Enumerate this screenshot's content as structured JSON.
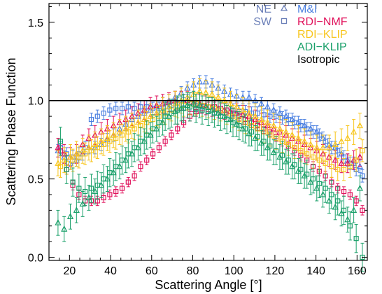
{
  "chart_data": {
    "type": "scatter",
    "xlabel": "Scattering Angle [°]",
    "ylabel": "Scattering Phase Function",
    "xlim": [
      10,
      165
    ],
    "ylim": [
      -0.02,
      1.62
    ],
    "xticks": [
      20,
      40,
      60,
      80,
      100,
      120,
      140,
      160
    ],
    "yticks": [
      0.0,
      0.5,
      1.0,
      1.5
    ],
    "ytick_labels": [
      "0.0",
      "0.5",
      "1.0",
      "1.5"
    ],
    "reference_line": {
      "y": 1.0,
      "name": "Isotropic",
      "color": "#000000"
    },
    "legend": {
      "placement": "top-right",
      "markers": [
        {
          "label": "NE",
          "symbol": "triangle",
          "color": "#6b7fb8"
        },
        {
          "label": "SW",
          "symbol": "square",
          "color": "#6b7fb8"
        }
      ],
      "series": [
        {
          "label": "M&I",
          "color": "#4a7fe0"
        },
        {
          "label": "RDI−NMF",
          "color": "#e0105a"
        },
        {
          "label": "RDI−KLIP",
          "color": "#f7c51b"
        },
        {
          "label": "ADI−KLIP",
          "color": "#1aa06a"
        },
        {
          "label": "Isotropic",
          "color": "#000000"
        }
      ]
    },
    "x": [
      15,
      18,
      21,
      24,
      27,
      30,
      33,
      36,
      39,
      42,
      45,
      48,
      51,
      54,
      57,
      60,
      63,
      66,
      69,
      72,
      75,
      78,
      81,
      84,
      87,
      90,
      93,
      96,
      99,
      102,
      105,
      108,
      111,
      114,
      117,
      120,
      123,
      126,
      129,
      132,
      135,
      138,
      141,
      144,
      147,
      150,
      153,
      156,
      159,
      162
    ],
    "series": [
      {
        "name": "M&I",
        "side": "NE",
        "marker": "triangle",
        "color": "#4a7fe0",
        "values": [
          0.68,
          0.64,
          0.6,
          0.62,
          0.66,
          0.7,
          0.7,
          0.72,
          0.75,
          0.78,
          0.82,
          0.85,
          0.88,
          0.9,
          0.92,
          0.94,
          0.96,
          0.98,
          1.0,
          1.02,
          1.05,
          1.08,
          1.1,
          1.12,
          1.12,
          1.1,
          1.08,
          1.06,
          1.04,
          1.03,
          1.02,
          1.02,
          1.0,
          0.98,
          0.96,
          0.94,
          0.92,
          0.9,
          0.88,
          0.86,
          0.84,
          0.82,
          0.8,
          0.76,
          0.72,
          0.7,
          0.66,
          0.62,
          0.6,
          0.58
        ],
        "errors": [
          0.04,
          0.04,
          0.04,
          0.04,
          0.04,
          0.04,
          0.04,
          0.04,
          0.04,
          0.04,
          0.04,
          0.04,
          0.04,
          0.04,
          0.04,
          0.04,
          0.04,
          0.04,
          0.04,
          0.04,
          0.04,
          0.04,
          0.04,
          0.04,
          0.04,
          0.04,
          0.04,
          0.04,
          0.04,
          0.04,
          0.04,
          0.04,
          0.04,
          0.04,
          0.04,
          0.04,
          0.04,
          0.04,
          0.04,
          0.04,
          0.04,
          0.04,
          0.04,
          0.04,
          0.04,
          0.04,
          0.04,
          0.04,
          0.04,
          0.04
        ]
      },
      {
        "name": "M&I",
        "side": "SW",
        "marker": "square",
        "color": "#4a7fe0",
        "values": [
          0.7,
          0.66,
          0.64,
          0.66,
          0.7,
          0.88,
          0.9,
          0.92,
          0.94,
          0.95,
          0.95,
          0.96,
          0.95,
          0.96,
          0.96,
          0.95,
          0.95,
          0.96,
          0.97,
          0.98,
          0.98,
          0.98,
          0.97,
          0.96,
          0.96,
          0.95,
          0.95,
          0.94,
          0.94,
          0.93,
          0.93,
          0.92,
          0.92,
          0.91,
          0.9,
          0.9,
          0.89,
          0.88,
          0.86,
          0.84,
          0.82,
          0.8,
          0.78,
          0.74,
          0.7,
          0.68,
          0.64,
          0.6,
          0.56,
          0.52
        ],
        "errors": [
          0.04,
          0.04,
          0.04,
          0.04,
          0.04,
          0.04,
          0.04,
          0.04,
          0.04,
          0.04,
          0.04,
          0.04,
          0.04,
          0.04,
          0.04,
          0.04,
          0.04,
          0.04,
          0.04,
          0.04,
          0.04,
          0.04,
          0.04,
          0.04,
          0.04,
          0.04,
          0.04,
          0.04,
          0.04,
          0.04,
          0.04,
          0.04,
          0.04,
          0.04,
          0.04,
          0.04,
          0.04,
          0.04,
          0.04,
          0.04,
          0.04,
          0.04,
          0.04,
          0.04,
          0.04,
          0.04,
          0.04,
          0.04,
          0.04,
          0.04
        ]
      },
      {
        "name": "RDI−NMF",
        "side": "NE",
        "marker": "triangle",
        "color": "#e0105a",
        "values": [
          0.7,
          0.66,
          0.64,
          0.66,
          0.72,
          0.76,
          0.78,
          0.8,
          0.82,
          0.84,
          0.86,
          0.88,
          0.9,
          0.92,
          0.94,
          0.96,
          0.97,
          0.98,
          0.99,
          1.0,
          1.0,
          1.0,
          0.99,
          0.98,
          0.97,
          0.96,
          0.95,
          0.94,
          0.93,
          0.92,
          0.91,
          0.9,
          0.88,
          0.86,
          0.84,
          0.82,
          0.8,
          0.78,
          0.76,
          0.74,
          0.72,
          0.7,
          0.68,
          0.66,
          0.64,
          0.62,
          0.6,
          0.6,
          0.62,
          0.64
        ],
        "errors": [
          0.06,
          0.06,
          0.06,
          0.06,
          0.06,
          0.06,
          0.06,
          0.06,
          0.06,
          0.06,
          0.06,
          0.06,
          0.06,
          0.06,
          0.06,
          0.06,
          0.06,
          0.06,
          0.06,
          0.06,
          0.06,
          0.06,
          0.06,
          0.06,
          0.06,
          0.06,
          0.06,
          0.06,
          0.06,
          0.06,
          0.06,
          0.06,
          0.06,
          0.06,
          0.06,
          0.06,
          0.06,
          0.06,
          0.06,
          0.06,
          0.06,
          0.06,
          0.06,
          0.06,
          0.06,
          0.06,
          0.06,
          0.06,
          0.06,
          0.06
        ]
      },
      {
        "name": "RDI−NMF",
        "side": "SW",
        "marker": "square",
        "color": "#e0105a",
        "values": [
          0.68,
          0.56,
          0.46,
          0.4,
          0.36,
          0.36,
          0.36,
          0.38,
          0.4,
          0.42,
          0.44,
          0.48,
          0.52,
          0.58,
          0.62,
          0.66,
          0.7,
          0.74,
          0.78,
          0.82,
          0.86,
          0.9,
          0.93,
          0.95,
          0.96,
          0.96,
          0.95,
          0.94,
          0.92,
          0.9,
          0.88,
          0.86,
          0.84,
          0.82,
          0.8,
          0.77,
          0.74,
          0.71,
          0.68,
          0.65,
          0.62,
          0.58,
          0.55,
          0.52,
          0.48,
          0.44,
          0.42,
          0.4,
          0.36,
          0.3
        ],
        "errors": [
          0.03,
          0.03,
          0.03,
          0.03,
          0.03,
          0.03,
          0.03,
          0.03,
          0.03,
          0.03,
          0.03,
          0.03,
          0.03,
          0.03,
          0.03,
          0.03,
          0.03,
          0.03,
          0.03,
          0.03,
          0.03,
          0.03,
          0.03,
          0.03,
          0.03,
          0.03,
          0.03,
          0.03,
          0.03,
          0.03,
          0.03,
          0.03,
          0.03,
          0.03,
          0.03,
          0.03,
          0.03,
          0.03,
          0.03,
          0.03,
          0.03,
          0.03,
          0.03,
          0.03,
          0.03,
          0.03,
          0.03,
          0.03,
          0.03,
          0.03
        ]
      },
      {
        "name": "RDI−KLIP",
        "side": "NE",
        "marker": "triangle",
        "color": "#f7c51b",
        "values": [
          0.6,
          0.62,
          0.64,
          0.66,
          0.68,
          0.7,
          0.72,
          0.74,
          0.76,
          0.78,
          0.8,
          0.82,
          0.84,
          0.86,
          0.88,
          0.9,
          0.92,
          0.94,
          0.96,
          0.98,
          1.0,
          1.02,
          1.04,
          1.06,
          1.05,
          1.04,
          1.02,
          1.0,
          0.98,
          0.96,
          0.94,
          0.92,
          0.9,
          0.88,
          0.86,
          0.84,
          0.82,
          0.8,
          0.78,
          0.76,
          0.74,
          0.72,
          0.7,
          0.7,
          0.7,
          0.72,
          0.74,
          0.76,
          0.8,
          0.84
        ],
        "errors": [
          0.08,
          0.08,
          0.08,
          0.08,
          0.08,
          0.08,
          0.08,
          0.08,
          0.08,
          0.08,
          0.08,
          0.08,
          0.08,
          0.08,
          0.08,
          0.08,
          0.08,
          0.08,
          0.08,
          0.08,
          0.08,
          0.08,
          0.08,
          0.08,
          0.08,
          0.08,
          0.08,
          0.08,
          0.08,
          0.08,
          0.08,
          0.08,
          0.08,
          0.08,
          0.08,
          0.08,
          0.08,
          0.08,
          0.08,
          0.08,
          0.08,
          0.08,
          0.08,
          0.08,
          0.08,
          0.08,
          0.08,
          0.08,
          0.08,
          0.08
        ]
      },
      {
        "name": "RDI−KLIP",
        "side": "SW",
        "marker": "square",
        "color": "#f7c51b",
        "values": [
          0.58,
          0.6,
          0.62,
          0.64,
          0.66,
          0.68,
          0.7,
          0.72,
          0.74,
          0.76,
          0.78,
          0.8,
          0.82,
          0.84,
          0.86,
          0.88,
          0.9,
          0.92,
          0.94,
          0.96,
          0.97,
          0.98,
          0.98,
          0.97,
          0.96,
          0.95,
          0.94,
          0.92,
          0.9,
          0.88,
          0.86,
          0.84,
          0.82,
          0.8,
          0.78,
          0.76,
          0.74,
          0.72,
          0.7,
          0.68,
          0.66,
          0.64,
          0.62,
          0.6,
          0.58,
          0.56,
          0.56,
          0.58,
          0.62,
          0.68
        ],
        "errors": [
          0.07,
          0.07,
          0.07,
          0.07,
          0.07,
          0.07,
          0.07,
          0.07,
          0.07,
          0.07,
          0.07,
          0.07,
          0.07,
          0.07,
          0.07,
          0.07,
          0.07,
          0.07,
          0.07,
          0.07,
          0.07,
          0.07,
          0.07,
          0.07,
          0.07,
          0.07,
          0.07,
          0.07,
          0.07,
          0.07,
          0.07,
          0.07,
          0.07,
          0.07,
          0.07,
          0.07,
          0.07,
          0.07,
          0.07,
          0.07,
          0.07,
          0.07,
          0.07,
          0.07,
          0.07,
          0.07,
          0.07,
          0.07,
          0.07,
          0.07
        ]
      },
      {
        "name": "ADI−KLIP",
        "side": "NE",
        "marker": "triangle",
        "color": "#1aa06a",
        "values": [
          0.22,
          0.18,
          0.26,
          0.3,
          0.34,
          0.38,
          0.42,
          0.46,
          0.5,
          0.54,
          0.58,
          0.62,
          0.66,
          0.7,
          0.74,
          0.78,
          0.82,
          0.86,
          0.9,
          0.93,
          0.95,
          0.97,
          0.98,
          0.97,
          0.96,
          0.94,
          0.92,
          0.9,
          0.88,
          0.85,
          0.82,
          0.79,
          0.76,
          0.73,
          0.7,
          0.67,
          0.64,
          0.61,
          0.58,
          0.55,
          0.52,
          0.48,
          0.44,
          0.4,
          0.36,
          0.32,
          0.28,
          0.24,
          0.3,
          0.44
        ],
        "errors": [
          0.08,
          0.08,
          0.08,
          0.08,
          0.08,
          0.08,
          0.08,
          0.08,
          0.08,
          0.08,
          0.08,
          0.08,
          0.08,
          0.08,
          0.08,
          0.08,
          0.08,
          0.08,
          0.08,
          0.08,
          0.08,
          0.08,
          0.08,
          0.08,
          0.08,
          0.08,
          0.08,
          0.08,
          0.08,
          0.08,
          0.08,
          0.08,
          0.08,
          0.08,
          0.08,
          0.08,
          0.08,
          0.08,
          0.08,
          0.08,
          0.08,
          0.08,
          0.08,
          0.08,
          0.08,
          0.08,
          0.08,
          0.08,
          0.08,
          0.08
        ]
      },
      {
        "name": "ADI−KLIP",
        "side": "SW",
        "marker": "square",
        "color": "#1aa06a",
        "values": [
          0.74,
          0.56,
          0.48,
          0.44,
          0.42,
          0.44,
          0.46,
          0.5,
          0.54,
          0.58,
          0.62,
          0.66,
          0.7,
          0.74,
          0.78,
          0.82,
          0.86,
          0.9,
          0.92,
          0.94,
          0.95,
          0.96,
          0.95,
          0.94,
          0.93,
          0.92,
          0.9,
          0.88,
          0.86,
          0.84,
          0.82,
          0.8,
          0.77,
          0.74,
          0.71,
          0.68,
          0.65,
          0.62,
          0.59,
          0.56,
          0.53,
          0.5,
          0.47,
          0.44,
          0.4,
          0.36,
          0.3,
          0.2,
          0.12,
          0.0
        ],
        "errors": [
          0.09,
          0.09,
          0.09,
          0.09,
          0.09,
          0.09,
          0.09,
          0.09,
          0.09,
          0.09,
          0.09,
          0.09,
          0.09,
          0.09,
          0.09,
          0.09,
          0.09,
          0.09,
          0.09,
          0.09,
          0.09,
          0.09,
          0.09,
          0.09,
          0.09,
          0.09,
          0.09,
          0.09,
          0.09,
          0.09,
          0.09,
          0.09,
          0.09,
          0.09,
          0.09,
          0.09,
          0.09,
          0.09,
          0.09,
          0.09,
          0.09,
          0.09,
          0.09,
          0.09,
          0.09,
          0.09,
          0.09,
          0.09,
          0.09,
          0.09
        ]
      }
    ]
  }
}
